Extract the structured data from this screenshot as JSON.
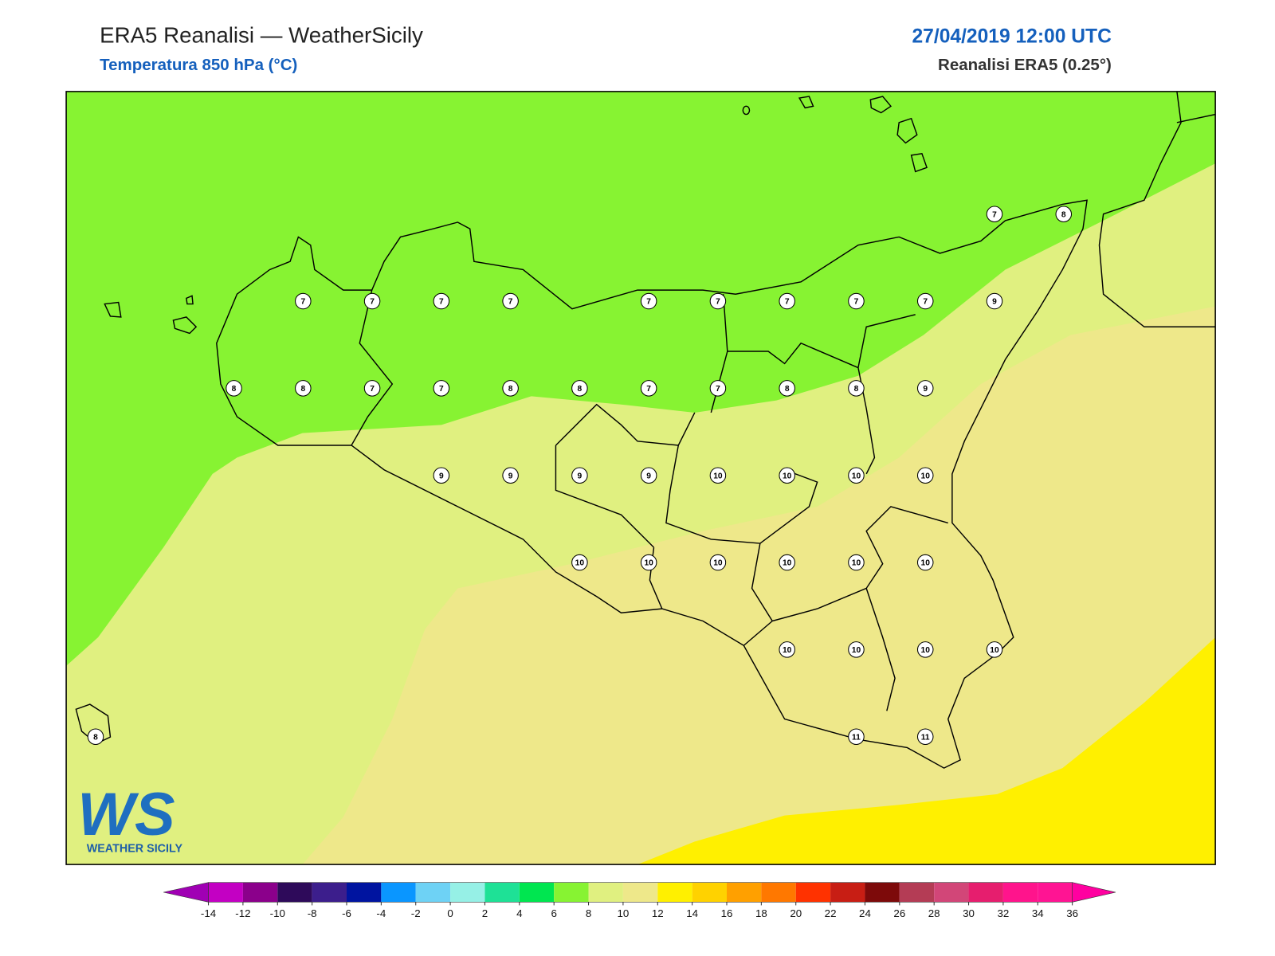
{
  "header": {
    "title": "ERA5 Reanalisi — WeatherSicily",
    "subtitle": "Temperatura 850 hPa (°C)",
    "date": "27/04/2019 12:00 UTC",
    "source": "Reanalisi ERA5 (0.25°)"
  },
  "stations": [
    [
      null,
      null,
      null,
      null,
      null,
      null,
      null,
      null,
      null,
      null,
      null,
      null,
      null,
      7,
      8
    ],
    [
      null,
      null,
      null,
      7,
      7,
      7,
      7,
      null,
      7,
      7,
      7,
      7,
      7,
      9,
      null
    ],
    [
      null,
      null,
      8,
      8,
      7,
      7,
      8,
      8,
      7,
      7,
      8,
      8,
      9,
      null,
      null
    ],
    [
      null,
      null,
      null,
      null,
      null,
      9,
      9,
      9,
      9,
      10,
      10,
      10,
      10,
      null,
      null
    ],
    [
      null,
      null,
      null,
      null,
      null,
      null,
      null,
      10,
      10,
      10,
      10,
      10,
      10,
      null,
      null
    ],
    [
      null,
      null,
      null,
      null,
      null,
      null,
      null,
      null,
      null,
      null,
      10,
      10,
      10,
      10,
      null
    ],
    [
      8,
      null,
      null,
      null,
      null,
      null,
      null,
      null,
      null,
      null,
      null,
      11,
      11,
      null,
      null
    ]
  ],
  "colorbar": {
    "ticks": [
      -14,
      -12,
      -10,
      -8,
      -6,
      -4,
      -2,
      0,
      2,
      4,
      6,
      8,
      10,
      12,
      14,
      16,
      18,
      20,
      22,
      24,
      26,
      28,
      30,
      32,
      34,
      36
    ],
    "colors": [
      "#c300c3",
      "#8b008b",
      "#2e0a5a",
      "#3c1e8c",
      "#0014a0",
      "#0a96ff",
      "#6ed2f5",
      "#96f0e6",
      "#1ee196",
      "#00e650",
      "#87f332",
      "#e0f080",
      "#eee88a",
      "#fff000",
      "#ffd200",
      "#ffa000",
      "#ff7800",
      "#ff3200",
      "#c81e14",
      "#7d0a0a",
      "#b43c55",
      "#d24678",
      "#e61e6e",
      "#ff148c",
      "#ff1493"
    ],
    "under": "#a000b4",
    "over": "#ff00a0"
  },
  "logo": {
    "mark": "WS",
    "name": "WEATHER SICILY"
  }
}
